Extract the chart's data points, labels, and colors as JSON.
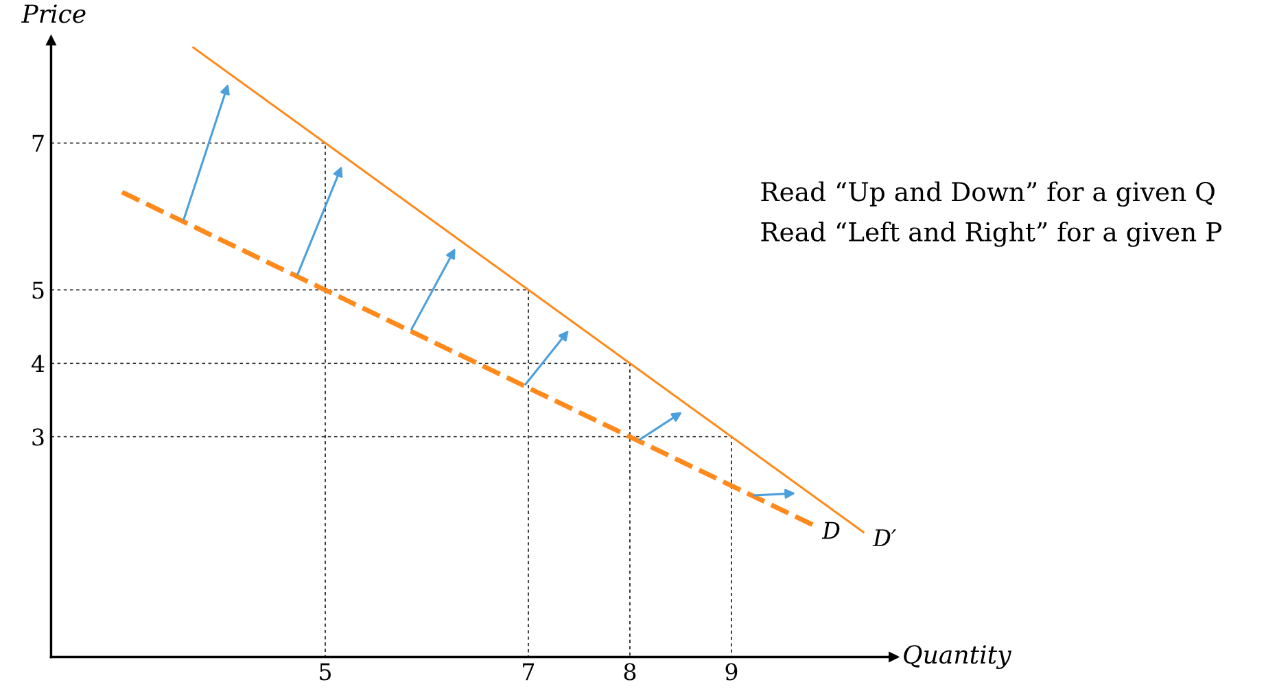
{
  "chart_data": {
    "type": "line",
    "xlabel": "Quantity",
    "ylabel": "Price",
    "xlim": [
      2.3,
      10.6
    ],
    "ylim": [
      0,
      8.4
    ],
    "xticks": [
      5,
      7,
      8,
      9
    ],
    "yticks": [
      3,
      4,
      5,
      7
    ],
    "grid": false,
    "legend": false,
    "marker": "none",
    "series": [
      {
        "name": "D′",
        "color": "#ff8a1c",
        "line_style": "solid",
        "x": [
          3.7,
          10.3
        ],
        "values": [
          8.3,
          1.7
        ]
      },
      {
        "name": "D",
        "color": "#ff8a1c",
        "line_style": "dashed",
        "x": [
          3.0,
          9.8
        ],
        "values": [
          6.33,
          1.8
        ]
      },
      {
        "color": "#000000",
        "line_style": "dotted",
        "x": [
          2.3,
          5,
          5
        ],
        "values": [
          7,
          7,
          0
        ]
      },
      {
        "color": "#000000",
        "line_style": "dotted",
        "x": [
          2.3,
          7,
          7
        ],
        "values": [
          5,
          5,
          0
        ]
      },
      {
        "color": "#000000",
        "line_style": "dotted",
        "x": [
          2.3,
          8,
          8
        ],
        "values": [
          4,
          4,
          0
        ]
      },
      {
        "color": "#000000",
        "line_style": "dotted",
        "x": [
          2.3,
          9,
          9
        ],
        "values": [
          3,
          3,
          0
        ]
      }
    ],
    "annotations": [
      "Read “Up and Down” for a given Q",
      "Read “Left and Right” for a given P"
    ]
  }
}
